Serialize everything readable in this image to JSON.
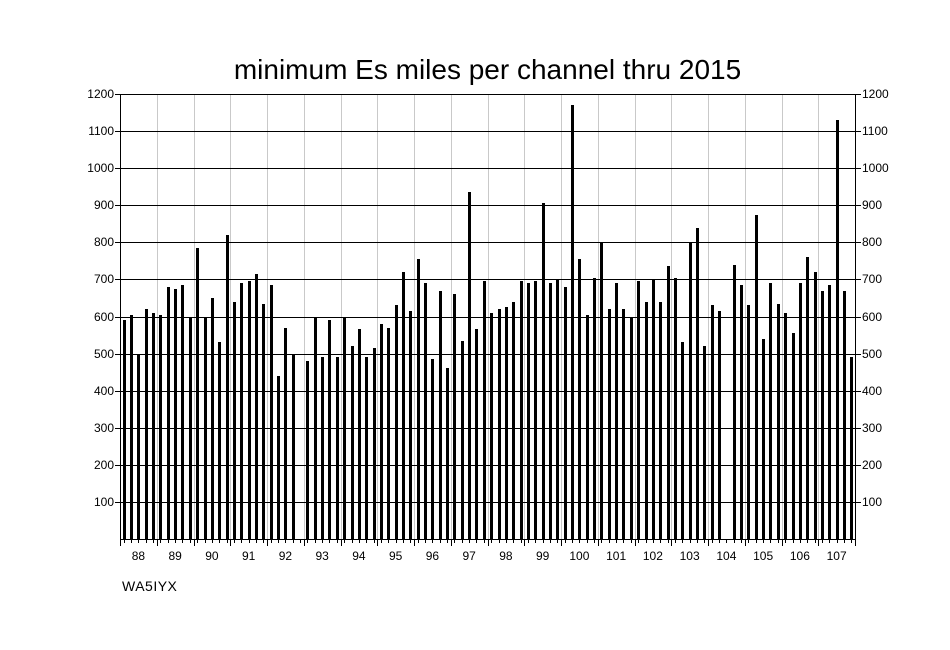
{
  "title": "minimum Es miles per channel thru 2015",
  "watermark": "WA5IYX",
  "chart_data": {
    "type": "bar",
    "title": "minimum Es miles per channel thru 2015",
    "ylim": [
      0,
      1200
    ],
    "ytick_interval": 100,
    "ytick_labels": [
      "100",
      "200",
      "300",
      "400",
      "500",
      "600",
      "700",
      "800",
      "900",
      "1000",
      "1100",
      "1200"
    ],
    "y_axis_labels_on_both_sides": true,
    "bar_color": "#000000",
    "grid": {
      "horizontal": "black",
      "vertical": "light-gray group separators"
    },
    "legend_position": "none",
    "bars_per_category": 5,
    "categories": [
      "88",
      "89",
      "90",
      "91",
      "92",
      "93",
      "94",
      "95",
      "96",
      "97",
      "98",
      "99",
      "100",
      "101",
      "102",
      "103",
      "104",
      "105",
      "106",
      "107"
    ],
    "groups": [
      {
        "channel": "88",
        "values": [
          590,
          605,
          495,
          620,
          610
        ]
      },
      {
        "channel": "89",
        "values": [
          605,
          680,
          675,
          685,
          600
        ]
      },
      {
        "channel": "90",
        "values": [
          785,
          600,
          650,
          530,
          820
        ]
      },
      {
        "channel": "91",
        "values": [
          640,
          690,
          695,
          715,
          635
        ]
      },
      {
        "channel": "92",
        "values": [
          685,
          440,
          570,
          500,
          null
        ]
      },
      {
        "channel": "93",
        "values": [
          480,
          600,
          490,
          590,
          490
        ]
      },
      {
        "channel": "94",
        "values": [
          600,
          520,
          565,
          490,
          515
        ]
      },
      {
        "channel": "95",
        "values": [
          580,
          570,
          630,
          720,
          615
        ]
      },
      {
        "channel": "96",
        "values": [
          755,
          690,
          485,
          670,
          460
        ]
      },
      {
        "channel": "97",
        "values": [
          660,
          535,
          935,
          565,
          695
        ]
      },
      {
        "channel": "98",
        "values": [
          610,
          620,
          625,
          640,
          695
        ]
      },
      {
        "channel": "99",
        "values": [
          690,
          695,
          905,
          690,
          700
        ]
      },
      {
        "channel": "100",
        "values": [
          680,
          1170,
          755,
          605,
          705
        ]
      },
      {
        "channel": "101",
        "values": [
          800,
          620,
          690,
          620,
          600
        ]
      },
      {
        "channel": "102",
        "values": [
          695,
          640,
          700,
          640,
          735
        ]
      },
      {
        "channel": "103",
        "values": [
          705,
          530,
          800,
          840,
          520
        ]
      },
      {
        "channel": "104",
        "values": [
          630,
          615,
          null,
          740,
          685
        ]
      },
      {
        "channel": "105",
        "values": [
          630,
          875,
          540,
          690,
          635
        ]
      },
      {
        "channel": "106",
        "values": [
          610,
          555,
          690,
          760,
          720
        ]
      },
      {
        "channel": "107",
        "values": [
          670,
          685,
          1130,
          670,
          490
        ]
      }
    ]
  }
}
